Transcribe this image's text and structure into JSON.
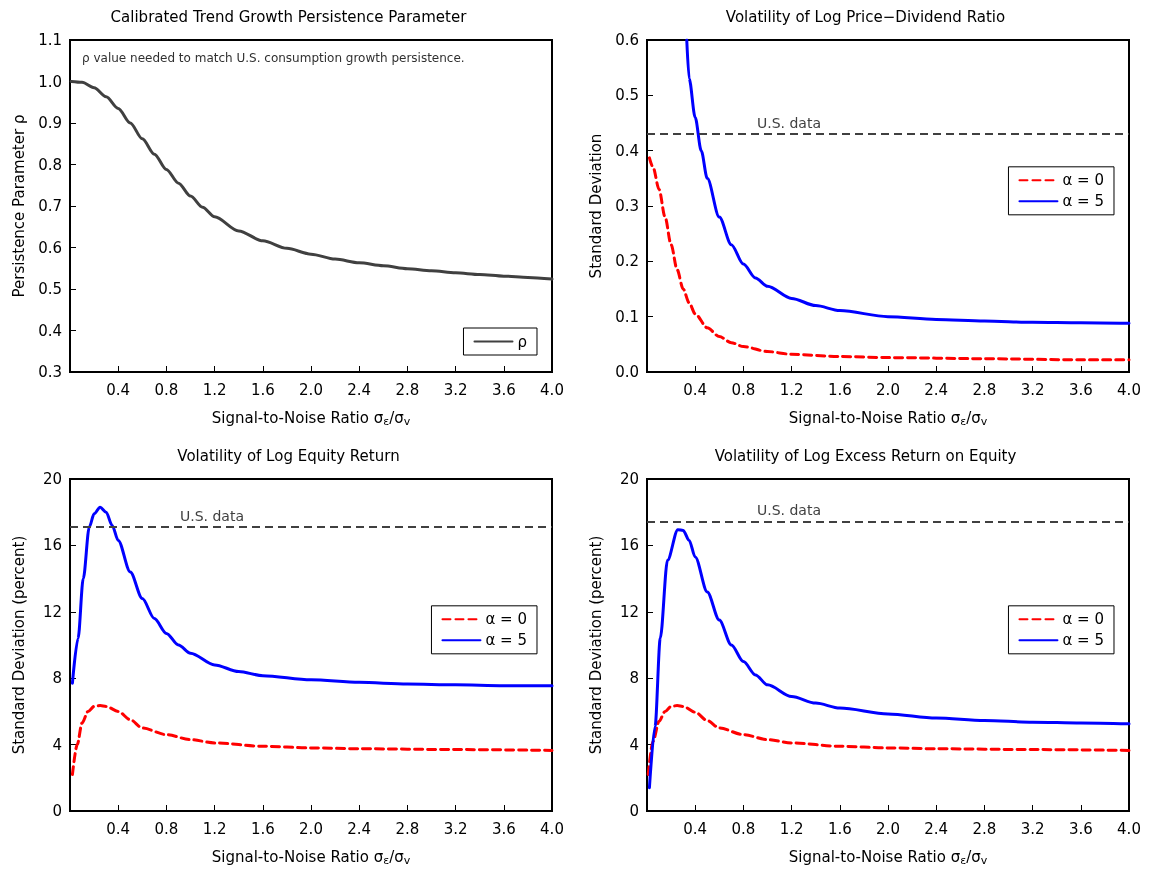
{
  "chart_data": [
    {
      "type": "line",
      "title": "Calibrated Trend Growth Persistence Parameter",
      "xlabel": "Signal-to-Noise Ratio σ$_{ε}$/σ$_{v}$",
      "ylabel": "Persistence Parameter ρ",
      "annotations": [
        "ρ value needed to match U.S. consumption growth persistence."
      ],
      "xlim": [
        0,
        4
      ],
      "xticks": [
        {
          "value": 0,
          "label": null
        },
        0.4,
        0.8,
        1.2,
        1.6,
        {
          "value": 2,
          "label": "2.0"
        },
        2.4,
        2.8,
        3.2,
        3.6,
        {
          "value": 4,
          "label": "4.0"
        }
      ],
      "ylim": [
        0.3,
        1.1
      ],
      "yticks": [
        0.3,
        0.4,
        0.5,
        0.6,
        0.7,
        0.8,
        0.9,
        {
          "value": 1,
          "label": "1.0"
        },
        1.1
      ],
      "grid": false,
      "legend": "bottom right",
      "marker": "none",
      "series": [
        {
          "name": "ρ",
          "color": "#404040",
          "line_style": "solid",
          "x": [
            0.01,
            0.1,
            0.2,
            0.3,
            0.4,
            0.5,
            0.6,
            0.7,
            0.8,
            0.9,
            1.0,
            1.1,
            1.2,
            1.4,
            1.6,
            1.8,
            2.0,
            2.2,
            2.4,
            2.6,
            2.8,
            3.0,
            3.2,
            3.4,
            3.6,
            3.8,
            4.0
          ],
          "values": [
            1.0,
            0.998,
            0.985,
            0.963,
            0.935,
            0.9,
            0.862,
            0.825,
            0.788,
            0.755,
            0.724,
            0.697,
            0.674,
            0.64,
            0.616,
            0.598,
            0.584,
            0.572,
            0.563,
            0.556,
            0.549,
            0.544,
            0.539,
            0.535,
            0.531,
            0.528,
            0.524
          ]
        }
      ]
    },
    {
      "type": "line",
      "title": "Volatility of Log Price−Dividend Ratio",
      "xlabel": "Signal-to-Noise Ratio σ$_{ε}$/σ$_{v}$",
      "ylabel": "Standard Deviation",
      "xlim": [
        0,
        4
      ],
      "xticks": [
        {
          "value": 0,
          "label": null
        },
        0.4,
        0.8,
        1.2,
        1.6,
        {
          "value": 2,
          "label": "2.0"
        },
        2.4,
        2.8,
        3.2,
        3.6,
        {
          "value": 4,
          "label": "4.0"
        }
      ],
      "ylim": [
        0,
        0.6
      ],
      "yticks": [
        {
          "value": 0,
          "label": "0.0"
        },
        0.1,
        0.2,
        0.3,
        0.4,
        0.5,
        0.6
      ],
      "grid": false,
      "legend": "right",
      "marker": "none",
      "ref_lines": [
        {
          "axis": "y",
          "value": 0.43,
          "label": "U.S. data",
          "color": "#404040",
          "line_style": "dashed"
        }
      ],
      "series": [
        {
          "name": "α = 0",
          "color": "#ff0000",
          "line_style": "dashed",
          "x": [
            0.02,
            0.05,
            0.1,
            0.15,
            0.2,
            0.25,
            0.3,
            0.35,
            0.4,
            0.5,
            0.6,
            0.7,
            0.8,
            1.0,
            1.2,
            1.6,
            2.0,
            2.8,
            3.6,
            4.0
          ],
          "values": [
            0.387,
            0.37,
            0.33,
            0.28,
            0.23,
            0.185,
            0.15,
            0.125,
            0.105,
            0.08,
            0.064,
            0.053,
            0.046,
            0.037,
            0.032,
            0.028,
            0.026,
            0.024,
            0.022,
            0.022
          ]
        },
        {
          "name": "α = 5",
          "color": "#0000ff",
          "line_style": "solid",
          "x": [
            0.33,
            0.35,
            0.4,
            0.45,
            0.5,
            0.6,
            0.7,
            0.8,
            0.9,
            1.0,
            1.2,
            1.4,
            1.6,
            2.0,
            2.4,
            2.8,
            3.2,
            3.6,
            4.0
          ],
          "values": [
            0.6,
            0.53,
            0.46,
            0.4,
            0.35,
            0.28,
            0.23,
            0.195,
            0.17,
            0.155,
            0.133,
            0.12,
            0.111,
            0.1,
            0.095,
            0.092,
            0.09,
            0.089,
            0.088
          ]
        }
      ]
    },
    {
      "type": "line",
      "title": "Volatility of Log Equity Return",
      "xlabel": "Signal-to-Noise Ratio σ$_{ε}$/σ$_{v}$",
      "ylabel": "Standard Deviation (percent)",
      "xlim": [
        0,
        4
      ],
      "xticks": [
        {
          "value": 0,
          "label": null
        },
        0.4,
        0.8,
        1.2,
        1.6,
        {
          "value": 2,
          "label": "2.0"
        },
        2.4,
        2.8,
        3.2,
        3.6,
        {
          "value": 4,
          "label": "4.0"
        }
      ],
      "ylim": [
        0,
        20
      ],
      "yticks": [
        0,
        4,
        8,
        12,
        16,
        20
      ],
      "grid": false,
      "legend": "right",
      "marker": "none",
      "ref_lines": [
        {
          "axis": "y",
          "value": 17.1,
          "label": "U.S. data",
          "color": "#404040",
          "line_style": "dashed"
        }
      ],
      "series": [
        {
          "name": "α = 0",
          "color": "#ff0000",
          "line_style": "dashed",
          "x": [
            0.02,
            0.06,
            0.1,
            0.15,
            0.2,
            0.25,
            0.3,
            0.4,
            0.5,
            0.6,
            0.8,
            1.0,
            1.2,
            1.6,
            2.0,
            2.4,
            3.2,
            4.0
          ],
          "values": [
            2.2,
            4.0,
            5.3,
            6.0,
            6.3,
            6.35,
            6.3,
            6.0,
            5.5,
            5.0,
            4.6,
            4.3,
            4.1,
            3.9,
            3.8,
            3.75,
            3.7,
            3.65
          ]
        },
        {
          "name": "α = 5",
          "color": "#0000ff",
          "line_style": "solid",
          "x": [
            0.02,
            0.067,
            0.11,
            0.16,
            0.2,
            0.25,
            0.3,
            0.35,
            0.4,
            0.5,
            0.6,
            0.7,
            0.8,
            0.9,
            1.0,
            1.2,
            1.4,
            1.6,
            2.0,
            2.4,
            2.8,
            3.2,
            3.6,
            4.0
          ],
          "values": [
            7.7,
            10.4,
            14.0,
            17.1,
            17.9,
            18.3,
            18.0,
            17.2,
            16.3,
            14.4,
            12.8,
            11.6,
            10.7,
            10.0,
            9.5,
            8.8,
            8.4,
            8.15,
            7.9,
            7.75,
            7.65,
            7.6,
            7.55,
            7.55
          ]
        }
      ]
    },
    {
      "type": "line",
      "title": "Volatility of Log Excess Return on Equity",
      "xlabel": "Signal-to-Noise Ratio σ$_{ε}$/σ$_{v}$",
      "ylabel": "Standard Deviation (percent)",
      "xlim": [
        0,
        4
      ],
      "xticks": [
        {
          "value": 0,
          "label": null
        },
        0.4,
        0.8,
        1.2,
        1.6,
        {
          "value": 2,
          "label": "2.0"
        },
        2.4,
        2.8,
        3.2,
        3.6,
        {
          "value": 4,
          "label": "4.0"
        }
      ],
      "ylim": [
        0,
        20
      ],
      "yticks": [
        0,
        4,
        8,
        12,
        16,
        20
      ],
      "grid": false,
      "legend": "right",
      "marker": "none",
      "ref_lines": [
        {
          "axis": "y",
          "value": 17.45,
          "label": "U.S. data",
          "color": "#404040",
          "line_style": "dashed"
        }
      ],
      "series": [
        {
          "name": "α = 0",
          "color": "#ff0000",
          "line_style": "dashed",
          "x": [
            0.01,
            0.05,
            0.1,
            0.15,
            0.2,
            0.25,
            0.3,
            0.4,
            0.5,
            0.6,
            0.8,
            1.0,
            1.2,
            1.6,
            2.0,
            2.4,
            3.2,
            4.0
          ],
          "values": [
            2.2,
            4.2,
            5.4,
            6.0,
            6.3,
            6.35,
            6.3,
            5.95,
            5.45,
            5.0,
            4.6,
            4.3,
            4.1,
            3.9,
            3.8,
            3.75,
            3.7,
            3.65
          ]
        },
        {
          "name": "α = 5",
          "color": "#0000ff",
          "line_style": "solid",
          "x": [
            0.02,
            0.067,
            0.11,
            0.17,
            0.256,
            0.3,
            0.35,
            0.4,
            0.5,
            0.6,
            0.7,
            0.8,
            0.9,
            1.0,
            1.2,
            1.4,
            1.6,
            2.0,
            2.4,
            2.8,
            3.2,
            3.6,
            4.0
          ],
          "values": [
            1.4,
            5.1,
            10.4,
            15.1,
            16.95,
            16.9,
            16.3,
            15.3,
            13.2,
            11.5,
            10.0,
            9.0,
            8.2,
            7.6,
            6.9,
            6.5,
            6.2,
            5.85,
            5.6,
            5.45,
            5.35,
            5.3,
            5.25
          ]
        }
      ]
    }
  ]
}
